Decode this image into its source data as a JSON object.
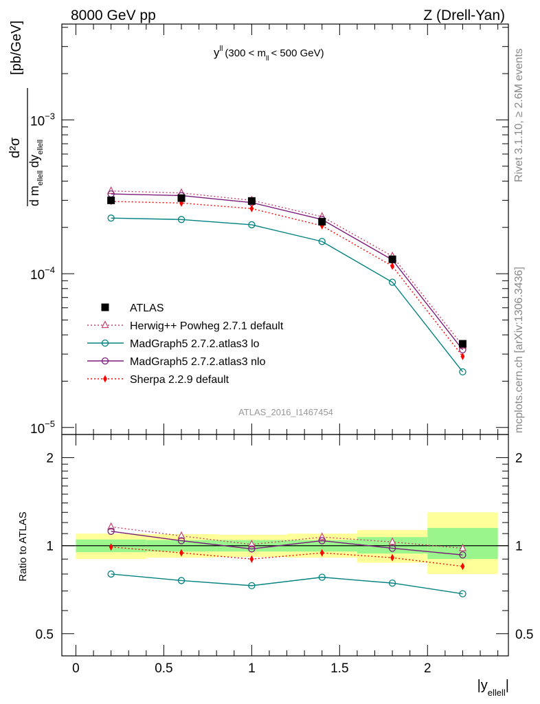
{
  "header": {
    "left": "8000 GeV pp",
    "right": "Z (Drell-Yan)"
  },
  "side_labels": {
    "rivet": "Rivet 3.1.10, ≥ 2.6M events",
    "mcplots": "mcplots.cern.ch [arXiv:1306.3436]"
  },
  "plot_label": {
    "main": "y",
    "main_sup": "ll",
    "rest_a": "(300 < m",
    "rest_sub": "ll",
    "rest_b": "< 500 GeV)"
  },
  "watermark": "ATLAS_2016_I1467454",
  "y_axis": {
    "numerator": "d²σ",
    "den_a": "d m",
    "den_sub_a": "ellell",
    "den_b": "dy",
    "den_sub_b": "ellell",
    "unit": "[pb/GeV]"
  },
  "ratio_axis_label": "Ratio to ATLAS",
  "x_axis_label": {
    "main": "|y",
    "sub": "ellell",
    "end": "|"
  },
  "chart_data": {
    "type": "line",
    "x": [
      0.2,
      0.6,
      1.0,
      1.4,
      1.8,
      2.2
    ],
    "xlim": [
      -0.08,
      2.46
    ],
    "ylim": [
      9e-06,
      0.0042
    ],
    "log_y": true,
    "ratio_ylim": [
      0.42,
      2.4
    ],
    "x_ticks": [
      "0",
      "0.5",
      "1",
      "1.5",
      "2"
    ],
    "y_ticks": [
      "10^-3",
      "10^-4",
      "10^-5"
    ],
    "ratio_ticks": [
      "0.5",
      "1",
      "2"
    ],
    "legend_position": "lower-left",
    "grid": false,
    "series": [
      {
        "name": "ATLAS",
        "color": "#000000",
        "marker": "square",
        "values": [
          0.0003,
          0.00031,
          0.000297,
          0.000218,
          0.000124,
          3.5e-05
        ],
        "ratio": [
          1,
          1,
          1,
          1,
          1,
          1
        ]
      },
      {
        "name": "Herwig++ Powheg 2.7.1 default",
        "color": "#c8406e",
        "marker": "triangle",
        "dotted": true,
        "values": [
          0.000345,
          0.000335,
          0.0003,
          0.000235,
          0.00013,
          3.4e-05
        ],
        "ratio": [
          1.16,
          1.08,
          1.01,
          1.07,
          1.03,
          0.98
        ]
      },
      {
        "name": "MadGraph5 2.7.2.atlas3 lo",
        "color": "#008080",
        "marker": "circle",
        "values": [
          0.00023,
          0.000225,
          0.000208,
          0.000162,
          8.8e-05,
          2.3e-05
        ],
        "ratio": [
          0.8,
          0.76,
          0.73,
          0.78,
          0.745,
          0.685
        ]
      },
      {
        "name": "MadGraph5 2.7.2.atlas3 nlo",
        "color": "#7b1a7b",
        "marker": "circle",
        "values": [
          0.00033,
          0.000322,
          0.00029,
          0.000225,
          0.000123,
          3.2e-05
        ],
        "ratio": [
          1.12,
          1.04,
          0.975,
          1.04,
          0.98,
          0.93
        ]
      },
      {
        "name": "Sherpa 2.2.9 default",
        "color": "#ff0000",
        "marker": "diamond",
        "dotted": true,
        "values": [
          0.000295,
          0.000288,
          0.000265,
          0.000205,
          0.000112,
          2.9e-05
        ],
        "ratio": [
          0.99,
          0.945,
          0.9,
          0.945,
          0.91,
          0.85
        ]
      }
    ],
    "bands": [
      {
        "x": [
          0.0,
          0.4
        ],
        "inner": [
          0.95,
          1.05
        ],
        "outer": [
          0.9,
          1.1
        ]
      },
      {
        "x": [
          0.4,
          0.8
        ],
        "inner": [
          0.955,
          1.045
        ],
        "outer": [
          0.91,
          1.095
        ]
      },
      {
        "x": [
          0.8,
          1.2
        ],
        "inner": [
          0.955,
          1.045
        ],
        "outer": [
          0.915,
          1.09
        ]
      },
      {
        "x": [
          1.2,
          1.6
        ],
        "inner": [
          0.955,
          1.045
        ],
        "outer": [
          0.91,
          1.1
        ]
      },
      {
        "x": [
          1.6,
          2.0
        ],
        "inner": [
          0.94,
          1.07
        ],
        "outer": [
          0.875,
          1.13
        ]
      },
      {
        "x": [
          2.0,
          2.4
        ],
        "inner": [
          0.9,
          1.15
        ],
        "outer": [
          0.8,
          1.3
        ]
      }
    ],
    "band_colors": {
      "inner": "#99f58c",
      "outer": "#ffff99"
    }
  }
}
